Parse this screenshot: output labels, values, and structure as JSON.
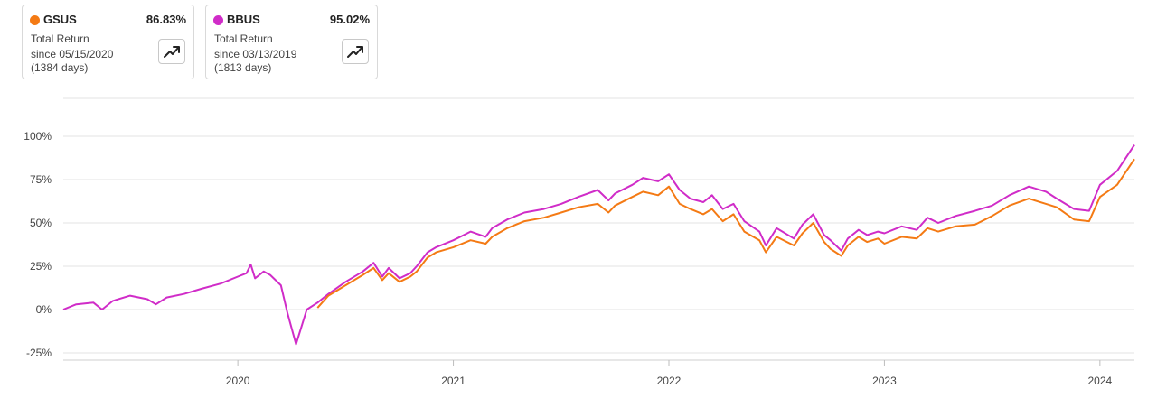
{
  "cards": [
    {
      "ticker": "GSUS",
      "value": "86.83%",
      "metric": "Total Return",
      "since": "since 05/15/2020",
      "days": "(1384 days)",
      "color": "#f47a14",
      "icon": "trending-up-icon"
    },
    {
      "ticker": "BBUS",
      "value": "95.02%",
      "metric": "Total Return",
      "since": "since 03/13/2019",
      "days": "(1813 days)",
      "color": "#d02cc8",
      "icon": "trending-up-icon"
    }
  ],
  "chart_data": {
    "type": "line",
    "title": "",
    "xlabel": "",
    "ylabel": "",
    "y_ticks": [
      "100%",
      "75%",
      "50%",
      "25%",
      "0%",
      "-25%"
    ],
    "x_ticks": [
      "2020",
      "2021",
      "2022",
      "2023",
      "2024"
    ],
    "ylim": [
      -25,
      100
    ],
    "xlim": [
      2019.19,
      2024.16
    ],
    "grid": "horizontal",
    "series": [
      {
        "name": "GSUS",
        "color": "#f47a14",
        "x": [
          2020.37,
          2020.42,
          2020.5,
          2020.58,
          2020.63,
          2020.67,
          2020.7,
          2020.75,
          2020.8,
          2020.83,
          2020.88,
          2020.92,
          2021.0,
          2021.08,
          2021.15,
          2021.18,
          2021.25,
          2021.33,
          2021.42,
          2021.5,
          2021.58,
          2021.67,
          2021.72,
          2021.75,
          2021.83,
          2021.88,
          2021.95,
          2022.0,
          2022.05,
          2022.1,
          2022.16,
          2022.2,
          2022.25,
          2022.3,
          2022.35,
          2022.42,
          2022.45,
          2022.5,
          2022.58,
          2022.62,
          2022.67,
          2022.72,
          2022.75,
          2022.8,
          2022.83,
          2022.88,
          2022.92,
          2022.97,
          2023.0,
          2023.08,
          2023.15,
          2023.2,
          2023.25,
          2023.33,
          2023.42,
          2023.5,
          2023.58,
          2023.67,
          2023.75,
          2023.8,
          2023.88,
          2023.95,
          2024.0,
          2024.08,
          2024.16
        ],
        "y": [
          1,
          8,
          14,
          20,
          24,
          17,
          21,
          16,
          19,
          22,
          30,
          33,
          36,
          40,
          38,
          42,
          47,
          51,
          53,
          56,
          59,
          61,
          56,
          60,
          65,
          68,
          66,
          71,
          61,
          58,
          55,
          58,
          51,
          55,
          45,
          40,
          33,
          42,
          37,
          44,
          50,
          39,
          35,
          31,
          37,
          42,
          39,
          41,
          38,
          42,
          41,
          47,
          45,
          48,
          49,
          54,
          60,
          64,
          61,
          59,
          52,
          51,
          65,
          72,
          86.83
        ]
      },
      {
        "name": "BBUS",
        "color": "#d02cc8",
        "x": [
          2019.19,
          2019.25,
          2019.33,
          2019.37,
          2019.42,
          2019.5,
          2019.58,
          2019.62,
          2019.67,
          2019.75,
          2019.83,
          2019.92,
          2020.0,
          2020.04,
          2020.06,
          2020.08,
          2020.12,
          2020.15,
          2020.2,
          2020.23,
          2020.27,
          2020.32,
          2020.37,
          2020.42,
          2020.5,
          2020.58,
          2020.63,
          2020.67,
          2020.7,
          2020.75,
          2020.8,
          2020.83,
          2020.88,
          2020.92,
          2021.0,
          2021.08,
          2021.15,
          2021.18,
          2021.25,
          2021.33,
          2021.42,
          2021.5,
          2021.58,
          2021.67,
          2021.72,
          2021.75,
          2021.83,
          2021.88,
          2021.95,
          2022.0,
          2022.05,
          2022.1,
          2022.16,
          2022.2,
          2022.25,
          2022.3,
          2022.35,
          2022.42,
          2022.45,
          2022.5,
          2022.58,
          2022.62,
          2022.67,
          2022.72,
          2022.75,
          2022.8,
          2022.83,
          2022.88,
          2022.92,
          2022.97,
          2023.0,
          2023.08,
          2023.15,
          2023.2,
          2023.25,
          2023.33,
          2023.42,
          2023.5,
          2023.58,
          2023.67,
          2023.75,
          2023.8,
          2023.88,
          2023.95,
          2024.0,
          2024.08,
          2024.16
        ],
        "y": [
          0,
          3,
          4,
          0,
          5,
          8,
          6,
          3,
          7,
          9,
          12,
          15,
          19,
          21,
          26,
          18,
          22,
          20,
          14,
          -2,
          -20,
          0,
          4,
          9,
          16,
          22,
          27,
          19,
          24,
          18,
          21,
          25,
          33,
          36,
          40,
          45,
          42,
          47,
          52,
          56,
          58,
          61,
          65,
          69,
          63,
          67,
          72,
          76,
          74,
          78,
          69,
          64,
          62,
          66,
          58,
          61,
          51,
          45,
          37,
          47,
          41,
          49,
          55,
          43,
          40,
          34,
          41,
          46,
          43,
          45,
          44,
          48,
          46,
          53,
          50,
          54,
          57,
          60,
          66,
          71,
          68,
          64,
          58,
          57,
          72,
          80,
          95.02
        ]
      }
    ]
  }
}
